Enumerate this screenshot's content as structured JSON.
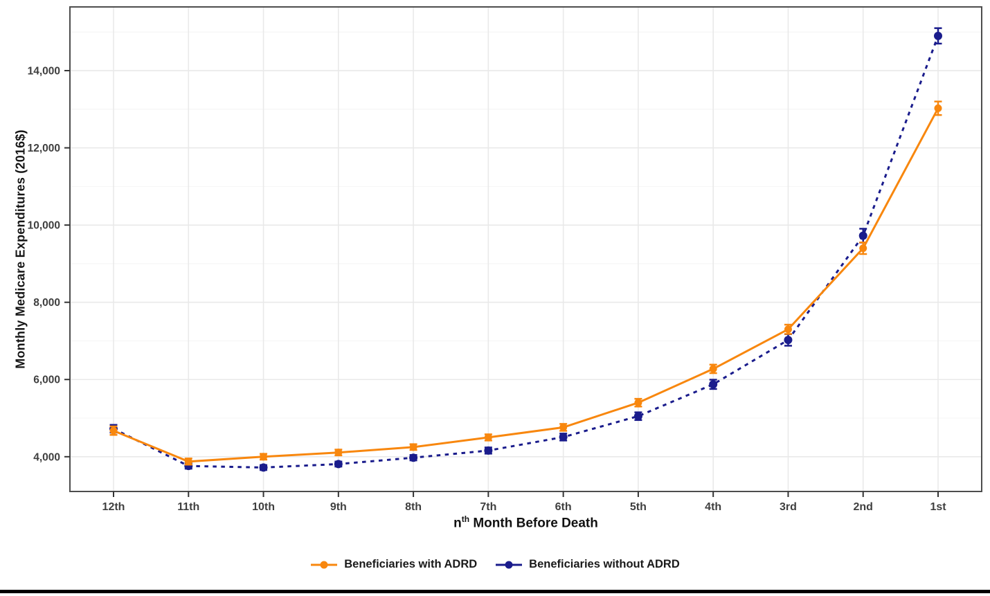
{
  "x_title": {
    "base": "n",
    "sup": "th",
    "rest": " Month Before Death"
  },
  "chart_data": {
    "type": "line",
    "title": "",
    "xlabel": "nth Month Before Death",
    "ylabel": "Monthly Medicare Expenditures (2016$)",
    "categories": [
      "12th",
      "11th",
      "10th",
      "9th",
      "8th",
      "7th",
      "6th",
      "5th",
      "4th",
      "3rd",
      "2nd",
      "1st"
    ],
    "ylim": [
      3100,
      15650
    ],
    "grid": true,
    "legend_position": "bottom",
    "y_ticks": [
      {
        "value": 4000,
        "label": "4,000"
      },
      {
        "value": 6000,
        "label": "6,000"
      },
      {
        "value": 8000,
        "label": "8,000"
      },
      {
        "value": 10000,
        "label": "10,000"
      },
      {
        "value": 12000,
        "label": "12,000"
      },
      {
        "value": 14000,
        "label": "14,000"
      }
    ],
    "y_minor": [
      5000,
      7000,
      9000,
      11000,
      13000,
      15000
    ],
    "series": [
      {
        "name": "Beneficiaries with ADRD",
        "color": "#F8870E",
        "style": "solid",
        "values": [
          4675,
          3875,
          4000,
          4110,
          4250,
          4500,
          4760,
          5400,
          6275,
          7300,
          9400,
          13025
        ],
        "error": [
          110,
          80,
          75,
          75,
          75,
          80,
          90,
          100,
          110,
          120,
          150,
          175
        ]
      },
      {
        "name": "Beneficiaries without ADRD",
        "color": "#1A1C8C",
        "style": "dashed",
        "values": [
          4725,
          3760,
          3720,
          3810,
          3975,
          4160,
          4510,
          5050,
          5875,
          7025,
          9725,
          14900
        ],
        "error": [
          100,
          70,
          65,
          65,
          70,
          80,
          90,
          100,
          120,
          150,
          180,
          200
        ]
      }
    ],
    "grid_major_color": "#E9E9E9",
    "grid_minor_color": "#F4F4F4",
    "panel_border_color": "#4D4D4D",
    "tick_color": "#333333",
    "tick_label_color": "#3F3F3F"
  }
}
